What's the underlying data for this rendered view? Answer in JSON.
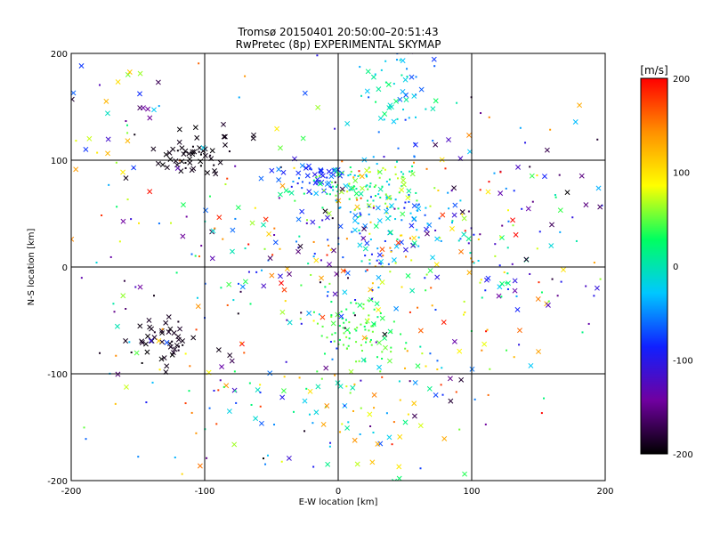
{
  "chart_data": {
    "type": "scatter",
    "title": "Tromsø 20150401 20:50:00–20:51:43",
    "subtitle": "RwPretec (8p) EXPERIMENTAL SKYMAP",
    "xlabel": "E-W location [km]",
    "ylabel": "N-S location [km]",
    "xlim": [
      -200,
      200
    ],
    "ylim": [
      -200,
      200
    ],
    "xticks": [
      "-200",
      "-100",
      "0",
      "100",
      "200"
    ],
    "yticks": [
      "-200",
      "-100",
      "0",
      "100",
      "200"
    ],
    "grid": true,
    "markers": [
      "x",
      "dot"
    ],
    "colorbar": {
      "label": "[m/s]",
      "min": -200,
      "max": 200,
      "ticks": [
        "200",
        "100",
        "0",
        "-100",
        "-200"
      ],
      "colormap": [
        "#000000",
        "#7000a0",
        "#1020ff",
        "#00c8ff",
        "#00ff60",
        "#ffff00",
        "#ff9000",
        "#ff0000"
      ]
    },
    "clusters": [
      {
        "cx": -105,
        "cy": 100,
        "sx": 22,
        "sy": 14,
        "n": 55,
        "vmin": -200,
        "vmax": -190,
        "xfrac": 0.75
      },
      {
        "cx": -130,
        "cy": -70,
        "sx": 12,
        "sy": 12,
        "n": 45,
        "vmin": -200,
        "vmax": -185,
        "xfrac": 0.8
      },
      {
        "cx": -20,
        "cy": 85,
        "sx": 12,
        "sy": 6,
        "n": 45,
        "vmin": -100,
        "vmax": -50,
        "xfrac": 0.7
      },
      {
        "cx": 20,
        "cy": 75,
        "sx": 25,
        "sy": 14,
        "n": 120,
        "vmin": -40,
        "vmax": 80,
        "xfrac": 0.2
      },
      {
        "cx": 15,
        "cy": -60,
        "sx": 15,
        "sy": 15,
        "n": 90,
        "vmin": 20,
        "vmax": 60,
        "xfrac": 0.1
      },
      {
        "cx": 45,
        "cy": 160,
        "sx": 15,
        "sy": 25,
        "n": 60,
        "vmin": -80,
        "vmax": 30,
        "xfrac": 0.4
      },
      {
        "cx": 30,
        "cy": 40,
        "sx": 25,
        "sy": 20,
        "n": 60,
        "vmin": -90,
        "vmax": -20,
        "xfrac": 0.3
      },
      {
        "cx": -160,
        "cy": 130,
        "sx": 25,
        "sy": 40,
        "n": 40,
        "vmin": -200,
        "vmax": 150,
        "xfrac": 0.7
      },
      {
        "cx": 0,
        "cy": -130,
        "sx": 40,
        "sy": 40,
        "n": 60,
        "vmin": -100,
        "vmax": 150,
        "xfrac": 0.4
      },
      {
        "cx": -20,
        "cy": 20,
        "sx": 60,
        "sy": 40,
        "n": 120,
        "vmin": -200,
        "vmax": 200,
        "xfrac": 0.4
      },
      {
        "cx": 100,
        "cy": 20,
        "sx": 50,
        "sy": 60,
        "n": 90,
        "vmin": -200,
        "vmax": 200,
        "xfrac": 0.35
      },
      {
        "cx": 150,
        "cy": 50,
        "sx": 35,
        "sy": 80,
        "n": 50,
        "vmin": -200,
        "vmax": 200,
        "xfrac": 0.4
      },
      {
        "cx": -60,
        "cy": -120,
        "sx": 60,
        "sy": 40,
        "n": 60,
        "vmin": -200,
        "vmax": 200,
        "xfrac": 0.4
      },
      {
        "cx": 0,
        "cy": 0,
        "sx": 120,
        "sy": 110,
        "n": 260,
        "vmin": -200,
        "vmax": 200,
        "xfrac": 0.4
      }
    ]
  }
}
